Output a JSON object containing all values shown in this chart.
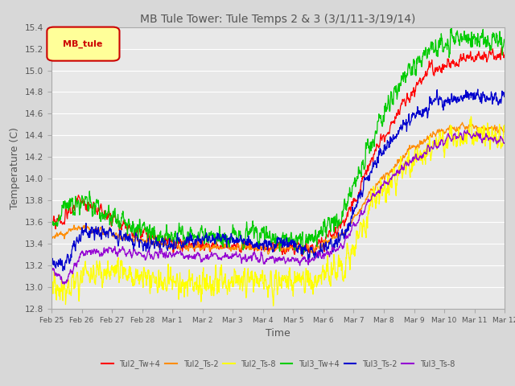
{
  "title": "MB Tule Tower: Tule Temps 2 & 3 (3/1/11-3/19/14)",
  "xlabel": "Time",
  "ylabel": "Temperature (C)",
  "ylim": [
    12.8,
    15.4
  ],
  "yticks": [
    12.8,
    13.0,
    13.2,
    13.4,
    13.6,
    13.8,
    14.0,
    14.2,
    14.4,
    14.6,
    14.8,
    15.0,
    15.2,
    15.4
  ],
  "xtick_labels": [
    "Feb 25",
    "Feb 26",
    "Feb 27",
    "Feb 28",
    "Mar 1",
    "Mar 2",
    "Mar 3",
    "Mar 4",
    "Mar 5",
    "Mar 6",
    "Mar 7",
    "Mar 8",
    "Mar 9",
    "Mar 10",
    "Mar 11",
    "Mar 12"
  ],
  "series": [
    {
      "label": "Tul2_Tw+4",
      "color": "#FF0000"
    },
    {
      "label": "Tul2_Ts-2",
      "color": "#FF8C00"
    },
    {
      "label": "Tul2_Ts-8",
      "color": "#FFFF00"
    },
    {
      "label": "Tul3_Tw+4",
      "color": "#00CC00"
    },
    {
      "label": "Tul3_Ts-2",
      "color": "#0000CD"
    },
    {
      "label": "Tul3_Ts-8",
      "color": "#9400D3"
    }
  ],
  "legend_box_facecolor": "#FFFF99",
  "legend_box_edgecolor": "#CC0000",
  "legend_text": "MB_tule",
  "fig_facecolor": "#D8D8D8",
  "plot_facecolor": "#E8E8E8",
  "grid_color": "#FFFFFF",
  "title_color": "#555555",
  "tick_color": "#555555"
}
